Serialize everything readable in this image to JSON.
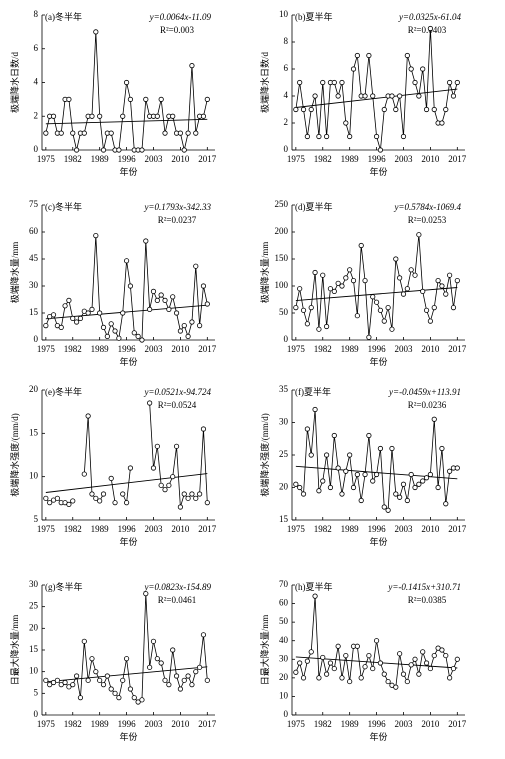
{
  "chart_data": [
    {
      "type": "line",
      "title": "(a)冬半年",
      "equation": "y=0.0064x-11.09",
      "r2": "R²=0.003",
      "ylabel": "极端降水日数/d",
      "xlabel": "年份",
      "trend": {
        "slope": 0.0064,
        "intercept": -11.09
      },
      "x": [
        1975,
        1976,
        1977,
        1978,
        1979,
        1980,
        1981,
        1982,
        1983,
        1984,
        1985,
        1986,
        1987,
        1988,
        1989,
        1990,
        1991,
        1992,
        1993,
        1994,
        1995,
        1996,
        1997,
        1998,
        1999,
        2000,
        2001,
        2002,
        2003,
        2004,
        2005,
        2006,
        2007,
        2008,
        2009,
        2010,
        2011,
        2012,
        2013,
        2014,
        2015,
        2016,
        2017
      ],
      "values": [
        1,
        2,
        2,
        1,
        1,
        3,
        3,
        1,
        0,
        1,
        1,
        2,
        2,
        7,
        2,
        0,
        1,
        1,
        0,
        0,
        2,
        4,
        3,
        0,
        0,
        0,
        3,
        2,
        2,
        2,
        3,
        1,
        2,
        2,
        1,
        1,
        0,
        1,
        5,
        1,
        2,
        2,
        3
      ],
      "color": "#000000",
      "xlim": [
        1974,
        2019
      ],
      "xticks": [
        1975,
        1982,
        1989,
        1996,
        2003,
        2010,
        2017
      ],
      "ylim": [
        0,
        8
      ],
      "yticks": [
        0,
        2,
        4,
        6,
        8
      ]
    },
    {
      "type": "line",
      "title": "(b)夏半年",
      "equation": "y=0.0325x-61.04",
      "r2": "R²=0.0403",
      "ylabel": "极端降水日数/d",
      "xlabel": "年份",
      "trend": {
        "slope": 0.0325,
        "intercept": -61.04
      },
      "x": [
        1975,
        1976,
        1977,
        1978,
        1979,
        1980,
        1981,
        1982,
        1983,
        1984,
        1985,
        1986,
        1987,
        1988,
        1989,
        1990,
        1991,
        1992,
        1993,
        1994,
        1995,
        1996,
        1997,
        1998,
        1999,
        2000,
        2001,
        2002,
        2003,
        2004,
        2005,
        2006,
        2007,
        2008,
        2009,
        2010,
        2011,
        2012,
        2013,
        2014,
        2015,
        2016,
        2017
      ],
      "values": [
        3,
        5,
        3,
        1,
        3,
        4,
        1,
        5,
        1,
        5,
        5,
        4,
        5,
        2,
        1,
        6,
        7,
        4,
        4,
        7,
        4,
        1,
        0,
        3,
        4,
        4,
        3,
        4,
        1,
        7,
        6,
        5,
        4,
        6,
        3,
        9,
        3,
        2,
        2,
        3,
        5,
        4,
        5
      ],
      "color": "#000000",
      "xlim": [
        1974,
        2019
      ],
      "xticks": [
        1975,
        1982,
        1989,
        1996,
        2003,
        2010,
        2017
      ],
      "ylim": [
        0,
        10
      ],
      "yticks": [
        0,
        2,
        4,
        6,
        8,
        10
      ]
    },
    {
      "type": "line",
      "title": "(c)冬半年",
      "equation": "y=0.1793x-342.33",
      "r2": "R²=0.0237",
      "ylabel": "极端降水量/mm",
      "xlabel": "年份",
      "trend": {
        "slope": 0.1793,
        "intercept": -342.33
      },
      "x": [
        1975,
        1976,
        1977,
        1978,
        1979,
        1980,
        1981,
        1982,
        1983,
        1984,
        1985,
        1986,
        1987,
        1988,
        1989,
        1990,
        1991,
        1992,
        1993,
        1994,
        1995,
        1996,
        1997,
        1998,
        1999,
        2000,
        2001,
        2002,
        2003,
        2004,
        2005,
        2006,
        2007,
        2008,
        2009,
        2010,
        2011,
        2012,
        2013,
        2014,
        2015,
        2016,
        2017
      ],
      "values": [
        8,
        13,
        14,
        8,
        7,
        19,
        22,
        12,
        10,
        12,
        16,
        15,
        17,
        58,
        15,
        7,
        2,
        9,
        5,
        1,
        15,
        44,
        30,
        4,
        2,
        0,
        55,
        17,
        27,
        22,
        25,
        22,
        17,
        24,
        15,
        5,
        8,
        2,
        10,
        41,
        8,
        30,
        20
      ],
      "color": "#000000",
      "xlim": [
        1974,
        2019
      ],
      "xticks": [
        1975,
        1982,
        1989,
        1996,
        2003,
        2010,
        2017
      ],
      "ylim": [
        0,
        75
      ],
      "yticks": [
        0,
        15,
        30,
        45,
        60,
        75
      ]
    },
    {
      "type": "line",
      "title": "(d)夏半年",
      "equation": "y=0.5784x-1069.4",
      "r2": "R²=0.0253",
      "ylabel": "极端降水量/mm",
      "xlabel": "年份",
      "trend": {
        "slope": 0.5784,
        "intercept": -1069.4
      },
      "x": [
        1975,
        1976,
        1977,
        1978,
        1979,
        1980,
        1981,
        1982,
        1983,
        1984,
        1985,
        1986,
        1987,
        1988,
        1989,
        1990,
        1991,
        1992,
        1993,
        1994,
        1995,
        1996,
        1997,
        1998,
        1999,
        2000,
        2001,
        2002,
        2003,
        2004,
        2005,
        2006,
        2007,
        2008,
        2009,
        2010,
        2011,
        2012,
        2013,
        2014,
        2015,
        2016,
        2017
      ],
      "values": [
        60,
        95,
        55,
        30,
        60,
        125,
        20,
        120,
        25,
        95,
        90,
        105,
        100,
        115,
        130,
        110,
        45,
        175,
        110,
        5,
        80,
        70,
        55,
        35,
        60,
        20,
        150,
        115,
        85,
        95,
        130,
        120,
        195,
        90,
        55,
        35,
        60,
        110,
        100,
        85,
        120,
        60,
        110
      ],
      "color": "#000000",
      "xlim": [
        1974,
        2019
      ],
      "xticks": [
        1975,
        1982,
        1989,
        1996,
        2003,
        2010,
        2017
      ],
      "ylim": [
        0,
        250
      ],
      "yticks": [
        0,
        50,
        100,
        150,
        200,
        250
      ]
    },
    {
      "type": "line",
      "title": "(e)冬半年",
      "equation": "y=0.0521x-94.724",
      "r2": "R²=0.0524",
      "ylabel": "极端降水强度/(mm/d)",
      "xlabel": "年份",
      "trend": {
        "slope": 0.0521,
        "intercept": -94.724
      },
      "x": [
        1975,
        1976,
        1977,
        1978,
        1979,
        1980,
        1981,
        1982,
        1983,
        1984,
        1985,
        1986,
        1987,
        1988,
        1989,
        1990,
        1991,
        1992,
        1993,
        1994,
        1995,
        1996,
        1997,
        1998,
        1999,
        2000,
        2001,
        2002,
        2003,
        2004,
        2005,
        2006,
        2007,
        2008,
        2009,
        2010,
        2011,
        2012,
        2013,
        2014,
        2015,
        2016,
        2017
      ],
      "values": [
        7.5,
        7,
        7.3,
        7.5,
        7,
        7,
        6.8,
        7.2,
        null,
        null,
        10.3,
        17,
        8,
        7.5,
        7.2,
        8,
        null,
        9.8,
        7,
        null,
        8,
        7,
        11,
        null,
        null,
        null,
        null,
        18.5,
        11,
        13.5,
        9,
        8.5,
        9,
        10,
        13.5,
        6.5,
        8,
        7.5,
        8,
        7.5,
        8,
        15.5,
        7
      ],
      "color": "#000000",
      "xlim": [
        1974,
        2019
      ],
      "xticks": [
        1975,
        1982,
        1989,
        1996,
        2003,
        2010,
        2017
      ],
      "ylim": [
        5,
        20
      ],
      "yticks": [
        5,
        10,
        15,
        20
      ]
    },
    {
      "type": "line",
      "title": "(f)夏半年",
      "equation": "y=-0.0459x+113.91",
      "r2": "R²=0.0236",
      "ylabel": "极端降水强度/(mm/d)",
      "xlabel": "年份",
      "trend": {
        "slope": -0.0459,
        "intercept": 113.91
      },
      "x": [
        1975,
        1976,
        1977,
        1978,
        1979,
        1980,
        1981,
        1982,
        1983,
        1984,
        1985,
        1986,
        1987,
        1988,
        1989,
        1990,
        1991,
        1992,
        1993,
        1994,
        1995,
        1996,
        1997,
        1998,
        1999,
        2000,
        2001,
        2002,
        2003,
        2004,
        2005,
        2006,
        2007,
        2008,
        2009,
        2010,
        2011,
        2012,
        2013,
        2014,
        2015,
        2016,
        2017
      ],
      "values": [
        20.5,
        20,
        19,
        29,
        25,
        32,
        19.5,
        21,
        25,
        20,
        28,
        23,
        19,
        22.5,
        25,
        20,
        22,
        18,
        22,
        28,
        21,
        22,
        26,
        17,
        16.5,
        26,
        19,
        18.5,
        20.5,
        18,
        22,
        20,
        20.5,
        21,
        21.5,
        22,
        30.5,
        20,
        26,
        17.5,
        22.5,
        23,
        23
      ],
      "color": "#000000",
      "xlim": [
        1974,
        2019
      ],
      "xticks": [
        1975,
        1982,
        1989,
        1996,
        2003,
        2010,
        2017
      ],
      "ylim": [
        15,
        35
      ],
      "yticks": [
        15,
        20,
        25,
        30,
        35
      ]
    },
    {
      "type": "line",
      "title": "(g)冬半年",
      "equation": "y=0.0823x-154.89",
      "r2": "R²=0.0461",
      "ylabel": "日最大降水量/mm",
      "xlabel": "年份",
      "trend": {
        "slope": 0.0823,
        "intercept": -154.89
      },
      "x": [
        1975,
        1976,
        1977,
        1978,
        1979,
        1980,
        1981,
        1982,
        1983,
        1984,
        1985,
        1986,
        1987,
        1988,
        1989,
        1990,
        1991,
        1992,
        1993,
        1994,
        1995,
        1996,
        1997,
        1998,
        1999,
        2000,
        2001,
        2002,
        2003,
        2004,
        2005,
        2006,
        2007,
        2008,
        2009,
        2010,
        2011,
        2012,
        2013,
        2014,
        2015,
        2016,
        2017
      ],
      "values": [
        8,
        7,
        7.5,
        8,
        7,
        7.5,
        6.5,
        7,
        9,
        4,
        17,
        8,
        13,
        10,
        8,
        7,
        9,
        6,
        5,
        4,
        8,
        13,
        6,
        4,
        3,
        3.5,
        28,
        11,
        17,
        13,
        12,
        8,
        7,
        15,
        9,
        6,
        8,
        9,
        7,
        10,
        11,
        18.5,
        8
      ],
      "color": "#000000",
      "xlim": [
        1974,
        2019
      ],
      "xticks": [
        1975,
        1982,
        1989,
        1996,
        2003,
        2010,
        2017
      ],
      "ylim": [
        0,
        30
      ],
      "yticks": [
        0,
        5,
        10,
        15,
        20,
        25,
        30
      ]
    },
    {
      "type": "line",
      "title": "(h)夏半年",
      "equation": "y=-0.1415x+310.71",
      "r2": "R²=0.0385",
      "ylabel": "日最大降水量/mm",
      "xlabel": "年份",
      "trend": {
        "slope": -0.1415,
        "intercept": 310.71
      },
      "x": [
        1975,
        1976,
        1977,
        1978,
        1979,
        1980,
        1981,
        1982,
        1983,
        1984,
        1985,
        1986,
        1987,
        1988,
        1989,
        1990,
        1991,
        1992,
        1993,
        1994,
        1995,
        1996,
        1997,
        1998,
        1999,
        2000,
        2001,
        2002,
        2003,
        2004,
        2005,
        2006,
        2007,
        2008,
        2009,
        2010,
        2011,
        2012,
        2013,
        2014,
        2015,
        2016,
        2017
      ],
      "values": [
        23,
        28,
        20,
        29,
        34,
        64,
        20,
        31,
        22,
        28,
        25,
        37,
        20,
        32,
        18,
        37,
        37,
        20,
        26,
        32,
        25,
        40,
        28,
        22,
        18,
        16,
        15,
        33,
        22,
        18,
        27,
        30,
        22,
        34,
        28,
        25,
        32,
        36,
        35,
        32,
        20,
        25,
        30
      ],
      "color": "#000000",
      "xlim": [
        1974,
        2019
      ],
      "xticks": [
        1975,
        1982,
        1989,
        1996,
        2003,
        2010,
        2017
      ],
      "ylim": [
        0,
        70
      ],
      "yticks": [
        0,
        10,
        20,
        30,
        40,
        50,
        60,
        70
      ]
    }
  ]
}
